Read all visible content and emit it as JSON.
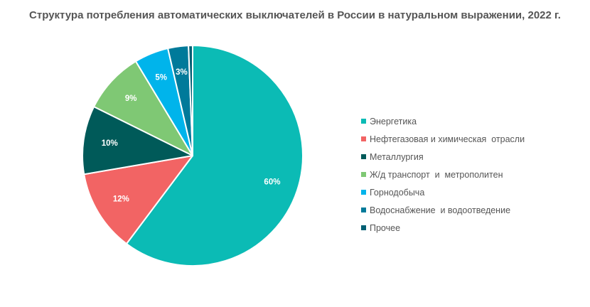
{
  "chart_data": {
    "type": "pie",
    "title": "Структура потребления автоматических выключателей в России в натуральном  выражении, 2022 г.",
    "categories": [
      "Энергетика",
      "Нефтегазовая и химическая  отрасли",
      "Металлургия",
      "Ж/д транспорт  и  метрополитен",
      "Горнодобыча",
      "Водоснабжение  и водоотведение",
      "Прочее"
    ],
    "values": [
      60,
      12,
      10,
      9,
      5,
      3,
      0.6
    ],
    "data_labels": [
      "60%",
      "12%",
      "10%",
      "9%",
      "5%",
      "3%",
      ""
    ],
    "colors": [
      "#0BBBB5",
      "#F26464",
      "#005A59",
      "#7FC874",
      "#00B4EB",
      "#007A9A",
      "#005F73"
    ],
    "legend_position": "right",
    "start_angle": "12 o'clock",
    "direction": "clockwise"
  }
}
